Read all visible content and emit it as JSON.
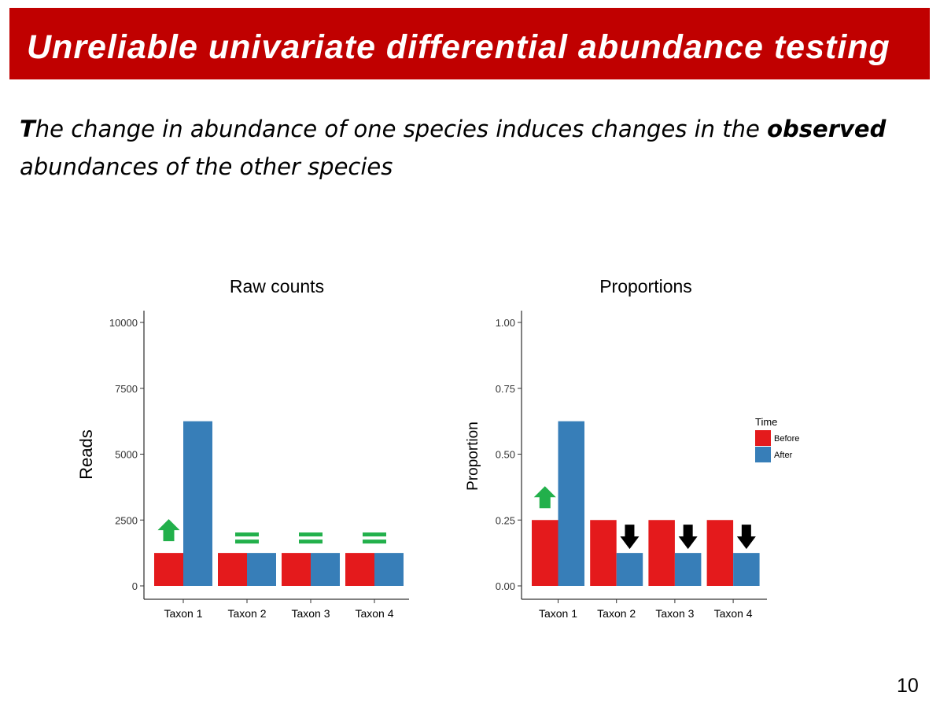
{
  "slide": {
    "title": "Unreliable univariate differential abundance testing",
    "subtitle_first_letter": "T",
    "subtitle_part1": "he change in abundance of one species induces changes in the ",
    "subtitle_bold": "observed",
    "subtitle_part2": "abundances of the other species",
    "page_number": "10"
  },
  "colors": {
    "title_bg": "#c00000",
    "before": "#e41a1c",
    "after": "#377eb8",
    "up_arrow": "#22b04b",
    "equal_sign": "#22b04b",
    "down_arrow": "#000000"
  },
  "chart_data": [
    {
      "type": "bar",
      "title": "Raw counts",
      "xlabel": "",
      "ylabel": "Reads",
      "ylim": [
        0,
        10000
      ],
      "yticks": [
        0,
        2500,
        5000,
        7500,
        10000
      ],
      "ytick_labels": [
        "0",
        "2500",
        "5000",
        "7500",
        "10000"
      ],
      "categories": [
        "Taxon 1",
        "Taxon 2",
        "Taxon 3",
        "Taxon 4"
      ],
      "series": [
        {
          "name": "Before",
          "values": [
            1250,
            1250,
            1250,
            1250
          ]
        },
        {
          "name": "After",
          "values": [
            6250,
            1250,
            1250,
            1250
          ]
        }
      ],
      "annotations": [
        "up-arrow",
        "equal-sign",
        "equal-sign",
        "equal-sign"
      ],
      "legend": null
    },
    {
      "type": "bar",
      "title": "Proportions",
      "xlabel": "",
      "ylabel": "Proportion",
      "ylim": [
        0,
        1
      ],
      "yticks": [
        0,
        0.25,
        0.5,
        0.75,
        1
      ],
      "ytick_labels": [
        "0.00",
        "0.25",
        "0.50",
        "0.75",
        "1.00"
      ],
      "categories": [
        "Taxon 1",
        "Taxon 2",
        "Taxon 3",
        "Taxon 4"
      ],
      "series": [
        {
          "name": "Before",
          "values": [
            0.25,
            0.25,
            0.25,
            0.25
          ]
        },
        {
          "name": "After",
          "values": [
            0.625,
            0.125,
            0.125,
            0.125
          ]
        }
      ],
      "annotations": [
        "up-arrow",
        "down-arrow",
        "down-arrow",
        "down-arrow"
      ],
      "legend": {
        "title": "Time",
        "entries": [
          "Before",
          "After"
        ],
        "position": "right"
      }
    }
  ]
}
